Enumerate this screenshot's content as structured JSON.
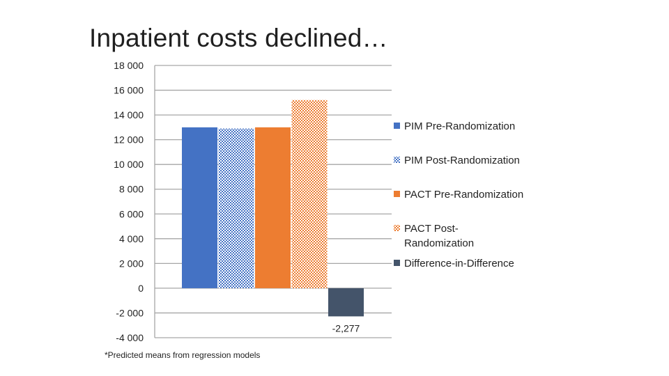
{
  "slide": {
    "title": "Inpatient costs declined…",
    "footnote": "*Predicted means from regression models"
  },
  "colors": {
    "pim_pre": "#4472C4",
    "pim_post": "#4472C4",
    "pact_pre": "#ED7D31",
    "pact_post": "#ED7D31",
    "did": "#44546A",
    "grid": "#A6A6A6"
  },
  "chart_data": {
    "type": "bar",
    "title": "",
    "xlabel": "",
    "ylabel": "",
    "ylim": [
      -4000,
      18000
    ],
    "yticks": [
      18000,
      16000,
      14000,
      12000,
      10000,
      8000,
      6000,
      4000,
      2000,
      0,
      -2000,
      -4000
    ],
    "ytick_labels": [
      "18 000",
      "16 000",
      "14 000",
      "12 000",
      "10 000",
      "8 000",
      "6 000",
      "4 000",
      "2 000",
      "0",
      "-2 000",
      "-4 000"
    ],
    "grid": true,
    "legend_position": "right",
    "series": [
      {
        "name": "PIM Pre-Randomization",
        "value": 13000,
        "color": "#4472C4",
        "pattern": "solid"
      },
      {
        "name": "PIM Post-Randomization",
        "value": 12900,
        "color": "#4472C4",
        "pattern": "dotted"
      },
      {
        "name": "PACT Pre-Randomization",
        "value": 13000,
        "color": "#ED7D31",
        "pattern": "solid"
      },
      {
        "name": "PACT Post-Randomization",
        "value": 15200,
        "color": "#ED7D31",
        "pattern": "dotted"
      },
      {
        "name": "Difference-in-Difference",
        "value": -2277,
        "color": "#44546A",
        "pattern": "solid",
        "label": "-2,277"
      }
    ],
    "legend_lines": [
      [
        "PIM Pre-Randomization"
      ],
      [
        "PIM Post-Randomization"
      ],
      [
        "PACT Pre-Randomization"
      ],
      [
        "PACT Post-",
        "Randomization"
      ],
      [
        "Difference-in-Difference"
      ]
    ]
  }
}
